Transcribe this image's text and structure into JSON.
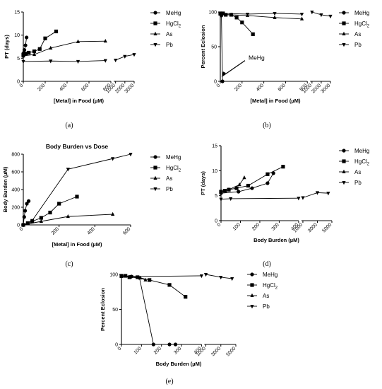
{
  "legend_labels": [
    "MeHg",
    "HgCl2",
    "As",
    "Pb"
  ],
  "panel_labels": [
    "(a)",
    "(b)",
    "(c)",
    "(d)",
    "(e)"
  ],
  "chart_data": [
    {
      "id": "a",
      "type": "line",
      "title": "",
      "xlabel": "[Metal] in Food (µM)",
      "ylabel": "PT (days)",
      "x_axis_segments": [
        {
          "range": [
            0,
            800
          ],
          "ticks": [
            0,
            200,
            400,
            600,
            800
          ]
        },
        {
          "range": [
            800,
            3000
          ],
          "ticks": [
            1000,
            2000,
            3000
          ]
        }
      ],
      "ylim": [
        0,
        15
      ],
      "yticks": [
        0,
        5,
        10,
        15
      ],
      "series": [
        {
          "name": "MeHg",
          "marker": "circle",
          "x": [
            0,
            5,
            10,
            20,
            30
          ],
          "y": [
            5.5,
            6.2,
            6.8,
            7.8,
            9.5
          ]
        },
        {
          "name": "HgCl2",
          "marker": "square",
          "x": [
            0,
            25,
            50,
            100,
            150,
            200,
            300
          ],
          "y": [
            5.8,
            6.0,
            6.2,
            6.5,
            7.0,
            9.3,
            10.8
          ]
        },
        {
          "name": "As",
          "marker": "triangle-up",
          "x": [
            0,
            100,
            250,
            500,
            750
          ],
          "y": [
            5.5,
            5.8,
            7.2,
            8.6,
            8.7
          ]
        },
        {
          "name": "Pb",
          "marker": "triangle-down",
          "x": [
            0,
            250,
            500,
            750,
            1000,
            2000,
            3000
          ],
          "y": [
            4.3,
            4.4,
            4.3,
            4.5,
            4.6,
            5.4,
            5.8
          ]
        }
      ]
    },
    {
      "id": "b",
      "type": "line",
      "title": "",
      "xlabel": "[Metal] in Food (µM)",
      "ylabel": "Percent Eclosion",
      "x_axis_segments": [
        {
          "range": [
            0,
            800
          ],
          "ticks": [
            0,
            200,
            400,
            600,
            800
          ]
        },
        {
          "range": [
            800,
            3000
          ],
          "ticks": [
            1000,
            2000,
            3000
          ]
        }
      ],
      "ylim": [
        0,
        100
      ],
      "yticks": [
        0,
        50,
        100
      ],
      "annotation": "MeHg",
      "series": [
        {
          "name": "MeHg",
          "marker": "circle",
          "x": [
            0,
            5,
            10,
            20
          ],
          "y": [
            98,
            97,
            95,
            0
          ]
        },
        {
          "name": "HgCl2",
          "marker": "square",
          "x": [
            0,
            25,
            50,
            100,
            150,
            200,
            300
          ],
          "y": [
            98,
            98,
            96,
            96,
            92,
            85,
            68
          ]
        },
        {
          "name": "As",
          "marker": "triangle-up",
          "x": [
            0,
            100,
            250,
            500,
            750
          ],
          "y": [
            97,
            96,
            95,
            92,
            90
          ]
        },
        {
          "name": "Pb",
          "marker": "triangle-down",
          "x": [
            0,
            250,
            500,
            750,
            1000,
            2000,
            3000
          ],
          "y": [
            98,
            97,
            98,
            97,
            100,
            96,
            94
          ]
        }
      ]
    },
    {
      "id": "c",
      "type": "line",
      "title": "Body Burden vs Dose",
      "xlabel": "[Metal] in Food (µM)",
      "ylabel": "Body  Burden (µM)",
      "xlim": [
        0,
        600
      ],
      "xticks": [
        0,
        200,
        400,
        600
      ],
      "ylim": [
        0,
        800
      ],
      "yticks": [
        0,
        200,
        400,
        600,
        800
      ],
      "series": [
        {
          "name": "MeHg",
          "marker": "circle",
          "x": [
            0,
            5,
            10,
            20,
            30
          ],
          "y": [
            0,
            90,
            160,
            240,
            270
          ]
        },
        {
          "name": "HgCl2",
          "marker": "square",
          "x": [
            0,
            25,
            50,
            100,
            150,
            200,
            300
          ],
          "y": [
            0,
            20,
            40,
            80,
            140,
            240,
            320
          ]
        },
        {
          "name": "As",
          "marker": "triangle-up",
          "x": [
            0,
            100,
            250,
            500
          ],
          "y": [
            0,
            40,
            95,
            120
          ]
        },
        {
          "name": "Pb",
          "marker": "triangle-down",
          "x": [
            0,
            50,
            250,
            500,
            600
          ],
          "y": [
            0,
            50,
            630,
            750,
            800
          ]
        }
      ]
    },
    {
      "id": "d",
      "type": "line",
      "title": "",
      "xlabel": "Body Burden (µM)",
      "ylabel": "PT (days)",
      "x_axis_segments": [
        {
          "range": [
            0,
            400
          ],
          "ticks": [
            0,
            100,
            200,
            300,
            400
          ]
        },
        {
          "range": [
            800,
            5000
          ],
          "ticks": [
            1000,
            3000,
            5000
          ]
        }
      ],
      "ylim": [
        0,
        15
      ],
      "yticks": [
        0,
        5,
        10,
        15
      ],
      "series": [
        {
          "name": "MeHg",
          "marker": "circle",
          "x": [
            0,
            90,
            160,
            240,
            270
          ],
          "y": [
            5.5,
            5.8,
            6.5,
            7.5,
            9.5
          ]
        },
        {
          "name": "HgCl2",
          "marker": "square",
          "x": [
            0,
            20,
            40,
            80,
            140,
            240,
            320
          ],
          "y": [
            5.8,
            6.0,
            6.2,
            6.5,
            7.0,
            9.3,
            10.8
          ]
        },
        {
          "name": "As",
          "marker": "triangle-up",
          "x": [
            0,
            40,
            95,
            120
          ],
          "y": [
            5.8,
            6.2,
            7.2,
            8.6
          ]
        },
        {
          "name": "Pb",
          "marker": "triangle-down",
          "x": [
            0,
            50,
            400,
            1000,
            3000,
            4500
          ],
          "y": [
            4.3,
            4.4,
            4.5,
            4.6,
            5.6,
            5.5
          ]
        }
      ]
    },
    {
      "id": "e",
      "type": "line",
      "title": "",
      "xlabel": "Body Burden (µM)",
      "ylabel": "Percent Eclosion",
      "x_axis_segments": [
        {
          "range": [
            0,
            400
          ],
          "ticks": [
            0,
            100,
            200,
            300,
            400
          ]
        },
        {
          "range": [
            800,
            5000
          ],
          "ticks": [
            1000,
            3000,
            5000
          ]
        }
      ],
      "ylim": [
        0,
        100
      ],
      "yticks": [
        0,
        50,
        100
      ],
      "series": [
        {
          "name": "MeHg",
          "marker": "circle",
          "x": [
            0,
            50,
            90,
            160,
            240,
            270
          ],
          "y": [
            98,
            97,
            95,
            0,
            0,
            0
          ]
        },
        {
          "name": "HgCl2",
          "marker": "square",
          "x": [
            0,
            20,
            40,
            80,
            140,
            240,
            320
          ],
          "y": [
            98,
            98,
            96,
            96,
            92,
            85,
            68
          ]
        },
        {
          "name": "As",
          "marker": "triangle-up",
          "x": [
            0,
            40,
            95,
            120
          ],
          "y": [
            97,
            96,
            95,
            92
          ]
        },
        {
          "name": "Pb",
          "marker": "triangle-down",
          "x": [
            0,
            50,
            400,
            1000,
            3000,
            4500
          ],
          "y": [
            98,
            97,
            98,
            100,
            96,
            94
          ]
        }
      ]
    }
  ]
}
